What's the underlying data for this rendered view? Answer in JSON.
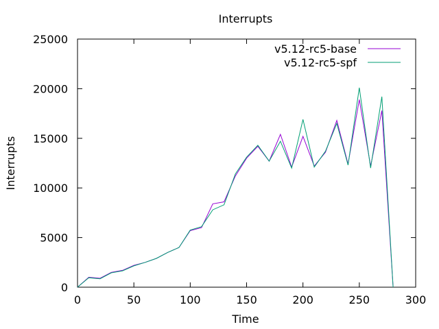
{
  "chart_data": {
    "type": "line",
    "title": "Interrupts",
    "xlabel": "Time",
    "ylabel": "Interrupts",
    "xlim": [
      0,
      300
    ],
    "ylim": [
      0,
      25000
    ],
    "xticks": [
      0,
      50,
      100,
      150,
      200,
      250,
      300
    ],
    "yticks": [
      0,
      5000,
      10000,
      15000,
      20000,
      25000
    ],
    "grid": false,
    "legend_position": "top-right",
    "series": [
      {
        "name": "v5.12-rc5-base",
        "color": "#9400d3",
        "x": [
          0,
          10,
          20,
          30,
          40,
          50,
          60,
          70,
          80,
          90,
          100,
          110,
          120,
          130,
          140,
          150,
          160,
          170,
          180,
          190,
          200,
          210,
          220,
          230,
          240,
          250,
          260,
          270,
          280
        ],
        "y": [
          0,
          1000,
          900,
          1500,
          1700,
          2200,
          2500,
          2900,
          3500,
          4000,
          5700,
          6000,
          8400,
          8600,
          11200,
          13000,
          14200,
          12700,
          15400,
          12100,
          15200,
          12200,
          13600,
          16800,
          12400,
          18900,
          12200,
          17800,
          0
        ]
      },
      {
        "name": "v5.12-rc5-spf",
        "color": "#009e73",
        "x": [
          0,
          10,
          20,
          30,
          40,
          50,
          60,
          70,
          80,
          90,
          100,
          110,
          120,
          130,
          140,
          150,
          160,
          170,
          180,
          190,
          200,
          210,
          220,
          230,
          240,
          250,
          260,
          270,
          280
        ],
        "y": [
          0,
          950,
          850,
          1450,
          1650,
          2150,
          2500,
          2900,
          3500,
          4000,
          5750,
          6100,
          7800,
          8300,
          11400,
          13100,
          14300,
          12700,
          14700,
          12000,
          16900,
          12100,
          13700,
          16500,
          12300,
          20100,
          12000,
          19200,
          0
        ]
      }
    ]
  }
}
